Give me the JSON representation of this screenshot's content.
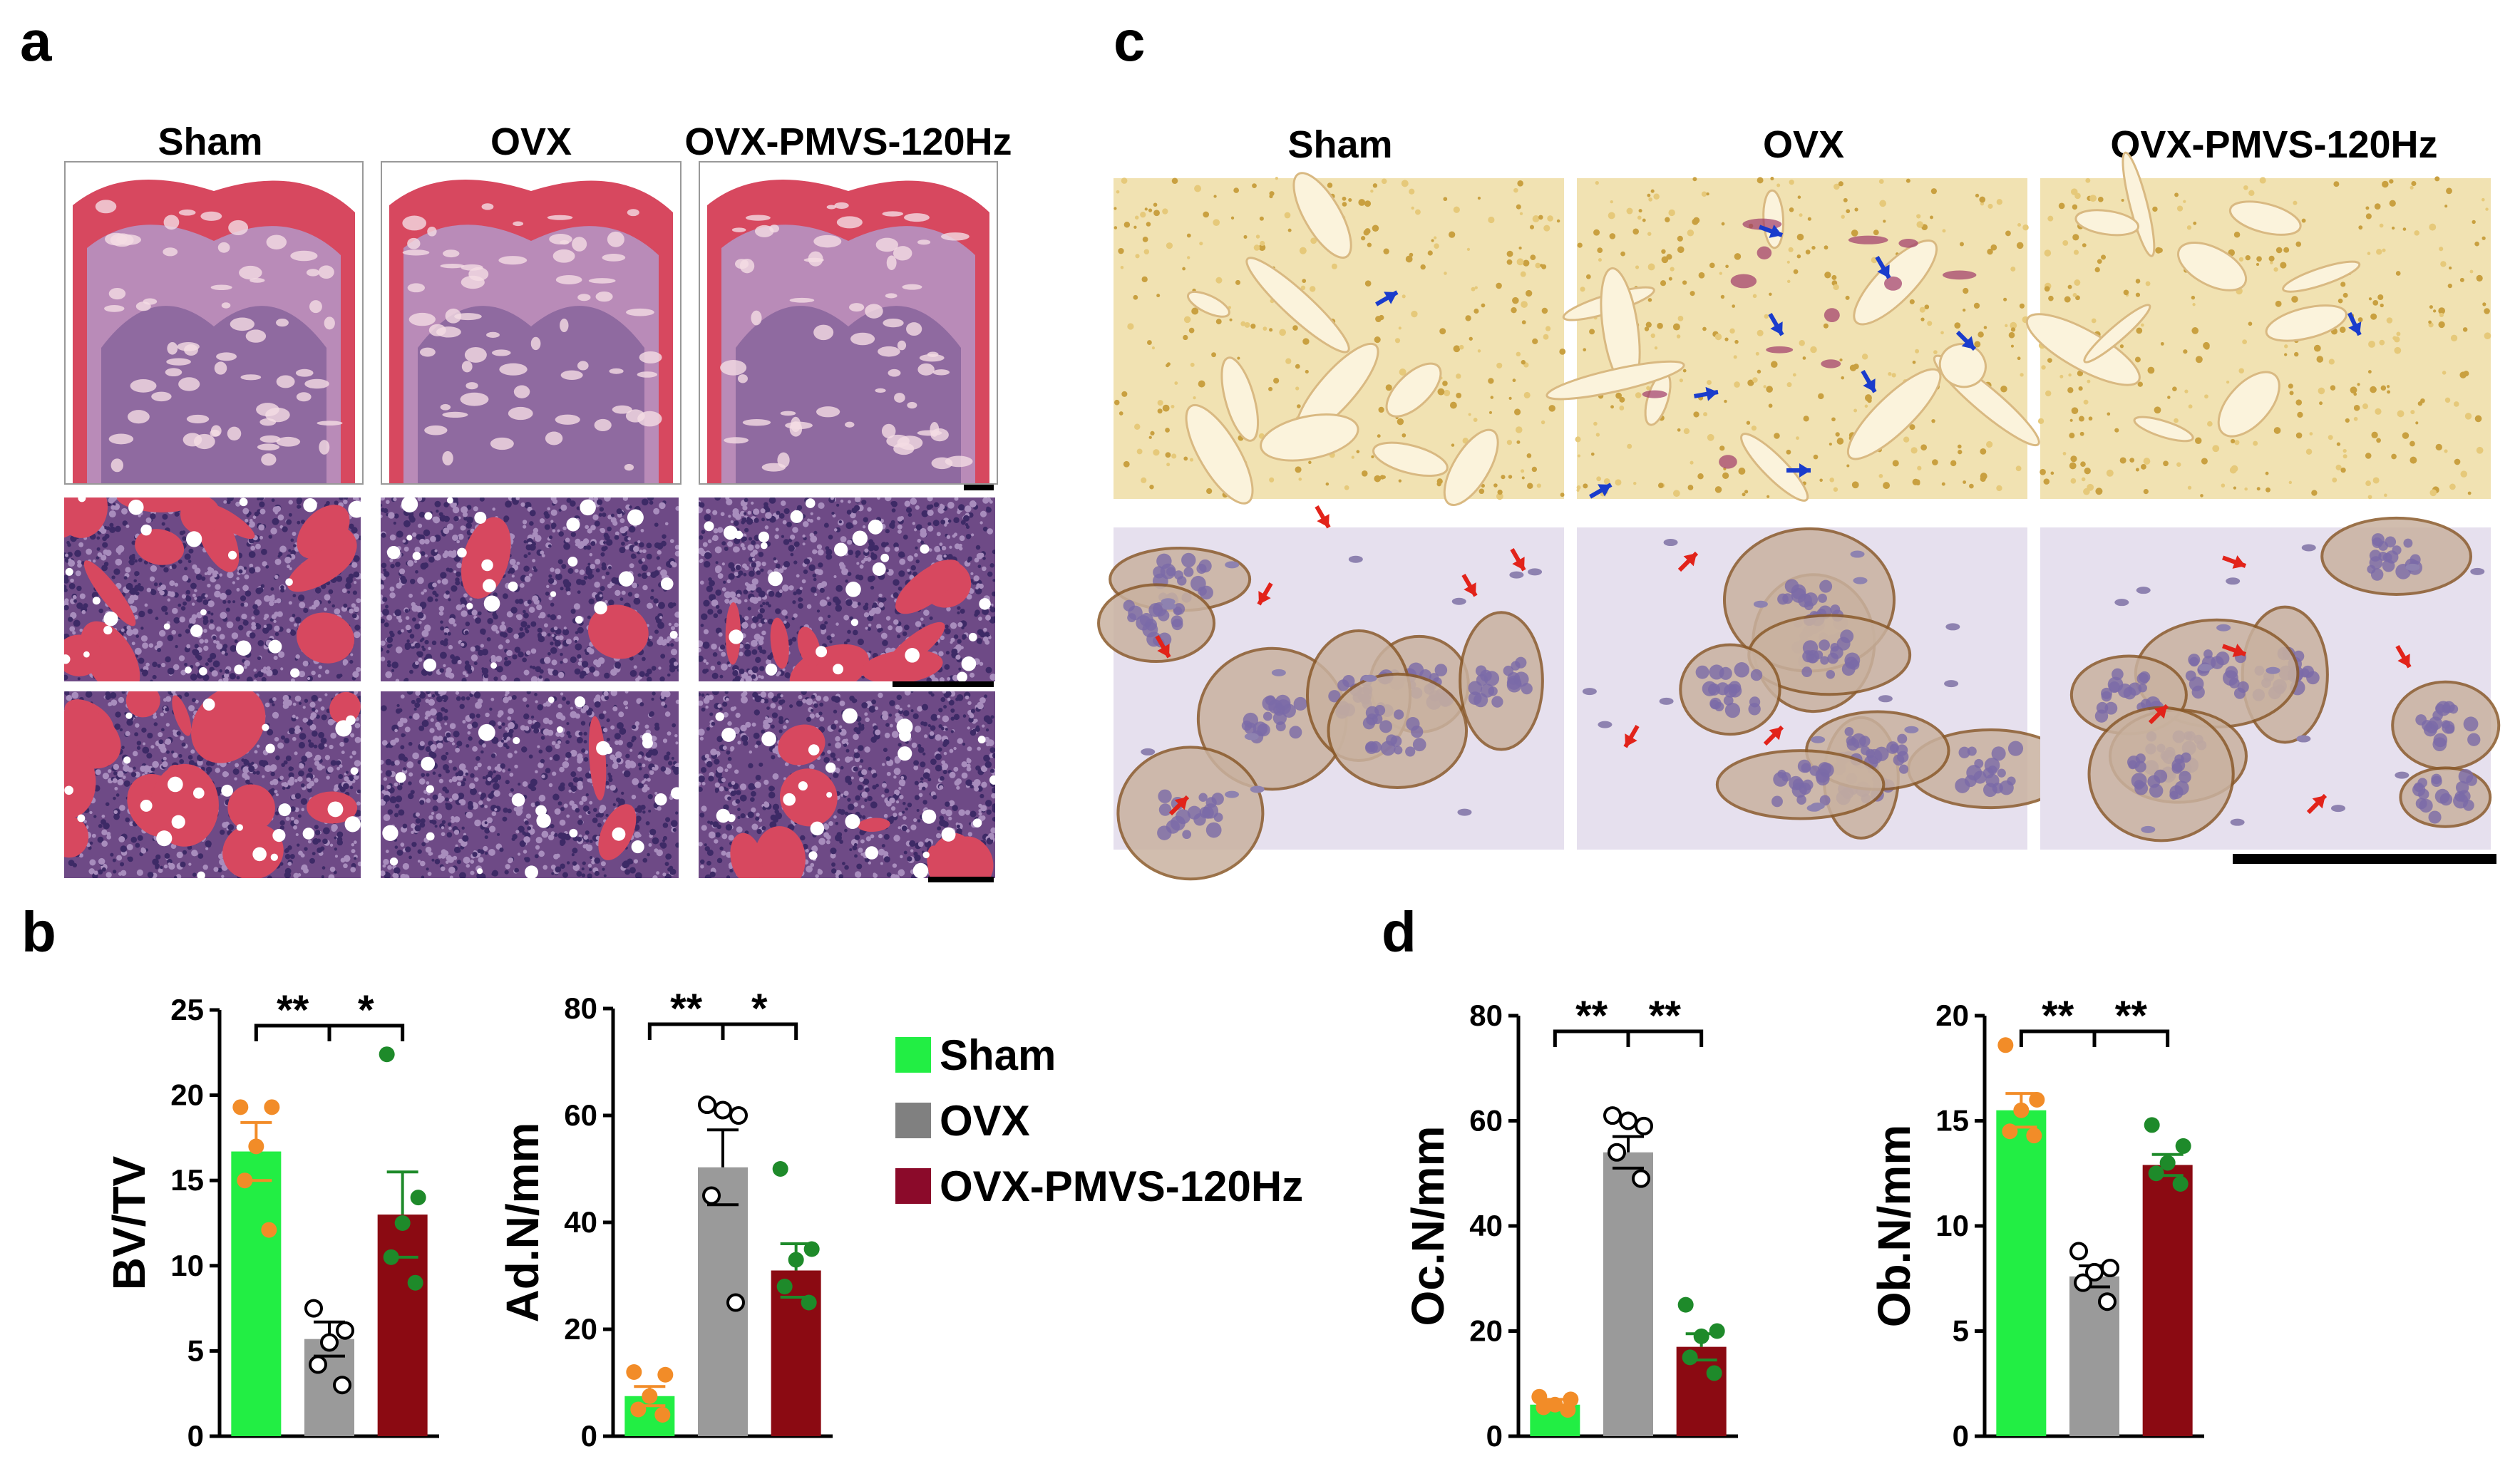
{
  "panels": {
    "a": "a",
    "b": "b",
    "c": "c",
    "d": "d"
  },
  "groups": [
    "Sham",
    "OVX",
    "OVX-PMVS-120Hz"
  ],
  "colors": {
    "sham": "#22ee44",
    "ovx": "#9a9a9a",
    "pmvs": "#8b0a12",
    "sham_points": "#f28c28",
    "pmvs_points": "#1e8a2a",
    "blue_arrow": "#1a3ccc",
    "red_arrow": "#e2231a",
    "he_pink": "#d7485f",
    "he_marrow": "#6e4a86",
    "trap_bg": "#f1e2b2",
    "opn_bg": "#e6e0ee"
  },
  "legend": [
    {
      "label": "Sham",
      "color": "#22ee44"
    },
    {
      "label": "OVX",
      "color": "#808080"
    },
    {
      "label": "OVX-PMVS-120Hz",
      "color": "#8b0a2a"
    }
  ],
  "chart_data": [
    {
      "type": "bar",
      "panel": "b",
      "ylabel": "BV/TV",
      "ylim": [
        0,
        25
      ],
      "yticks": [
        0,
        5,
        10,
        15,
        20,
        25
      ],
      "categories": [
        "Sham",
        "OVX",
        "OVX-PMVS-120Hz"
      ],
      "values": [
        16.7,
        5.7,
        13.0
      ],
      "sem": [
        1.7,
        1.0,
        2.5
      ],
      "points": [
        [
          19.3,
          19.3,
          17.0,
          15.0,
          12.1
        ],
        [
          7.5,
          6.2,
          5.5,
          4.2,
          3.0
        ],
        [
          22.4,
          14.0,
          12.5,
          10.5,
          9.0
        ]
      ],
      "significance": [
        {
          "from": 0,
          "to": 1,
          "label": "**"
        },
        {
          "from": 1,
          "to": 2,
          "label": "*"
        }
      ]
    },
    {
      "type": "bar",
      "panel": "b",
      "ylabel": "Ad.N/mm",
      "ylim": [
        0,
        80
      ],
      "yticks": [
        0,
        20,
        40,
        60,
        80
      ],
      "categories": [
        "Sham",
        "OVX",
        "OVX-PMVS-120Hz"
      ],
      "values": [
        7.5,
        50.3,
        31.0
      ],
      "sem": [
        1.8,
        7.0,
        5.0
      ],
      "points": [
        [
          12.0,
          11.5,
          7.5,
          5.0,
          4.0
        ],
        [
          62.0,
          60.0,
          61.0,
          45.0,
          25.0
        ],
        [
          50.0,
          35.0,
          33.0,
          28.0,
          25.0
        ]
      ],
      "significance": [
        {
          "from": 0,
          "to": 1,
          "label": "**"
        },
        {
          "from": 1,
          "to": 2,
          "label": "*"
        }
      ]
    },
    {
      "type": "bar",
      "panel": "d",
      "ylabel": "Oc.N/mm",
      "ylim": [
        0,
        80
      ],
      "yticks": [
        0,
        20,
        40,
        60,
        80
      ],
      "categories": [
        "Sham",
        "OVX",
        "OVX-PMVS-120Hz"
      ],
      "values": [
        6.0,
        54.0,
        17.0
      ],
      "sem": [
        1.0,
        3.0,
        2.5
      ],
      "points": [
        [
          7.5,
          7.0,
          6.0,
          5.5,
          5.0
        ],
        [
          61.0,
          59.0,
          60.0,
          54.0,
          49.0
        ],
        [
          25.0,
          20.0,
          19.0,
          15.0,
          12.0
        ]
      ],
      "significance": [
        {
          "from": 0,
          "to": 1,
          "label": "**"
        },
        {
          "from": 1,
          "to": 2,
          "label": "**"
        }
      ]
    },
    {
      "type": "bar",
      "panel": "d",
      "ylabel": "Ob.N/mm",
      "ylim": [
        0,
        20
      ],
      "yticks": [
        0,
        5,
        10,
        15,
        20
      ],
      "categories": [
        "Sham",
        "OVX",
        "OVX-PMVS-120Hz"
      ],
      "values": [
        15.5,
        7.6,
        12.9
      ],
      "sem": [
        0.8,
        0.5,
        0.5
      ],
      "points": [
        [
          18.6,
          16.0,
          15.5,
          14.5,
          14.3
        ],
        [
          8.8,
          8.0,
          7.8,
          7.3,
          6.4
        ],
        [
          14.8,
          13.8,
          13.0,
          12.5,
          12.0
        ]
      ],
      "significance": [
        {
          "from": 0,
          "to": 1,
          "label": "**"
        },
        {
          "from": 1,
          "to": 2,
          "label": "**"
        }
      ]
    }
  ]
}
